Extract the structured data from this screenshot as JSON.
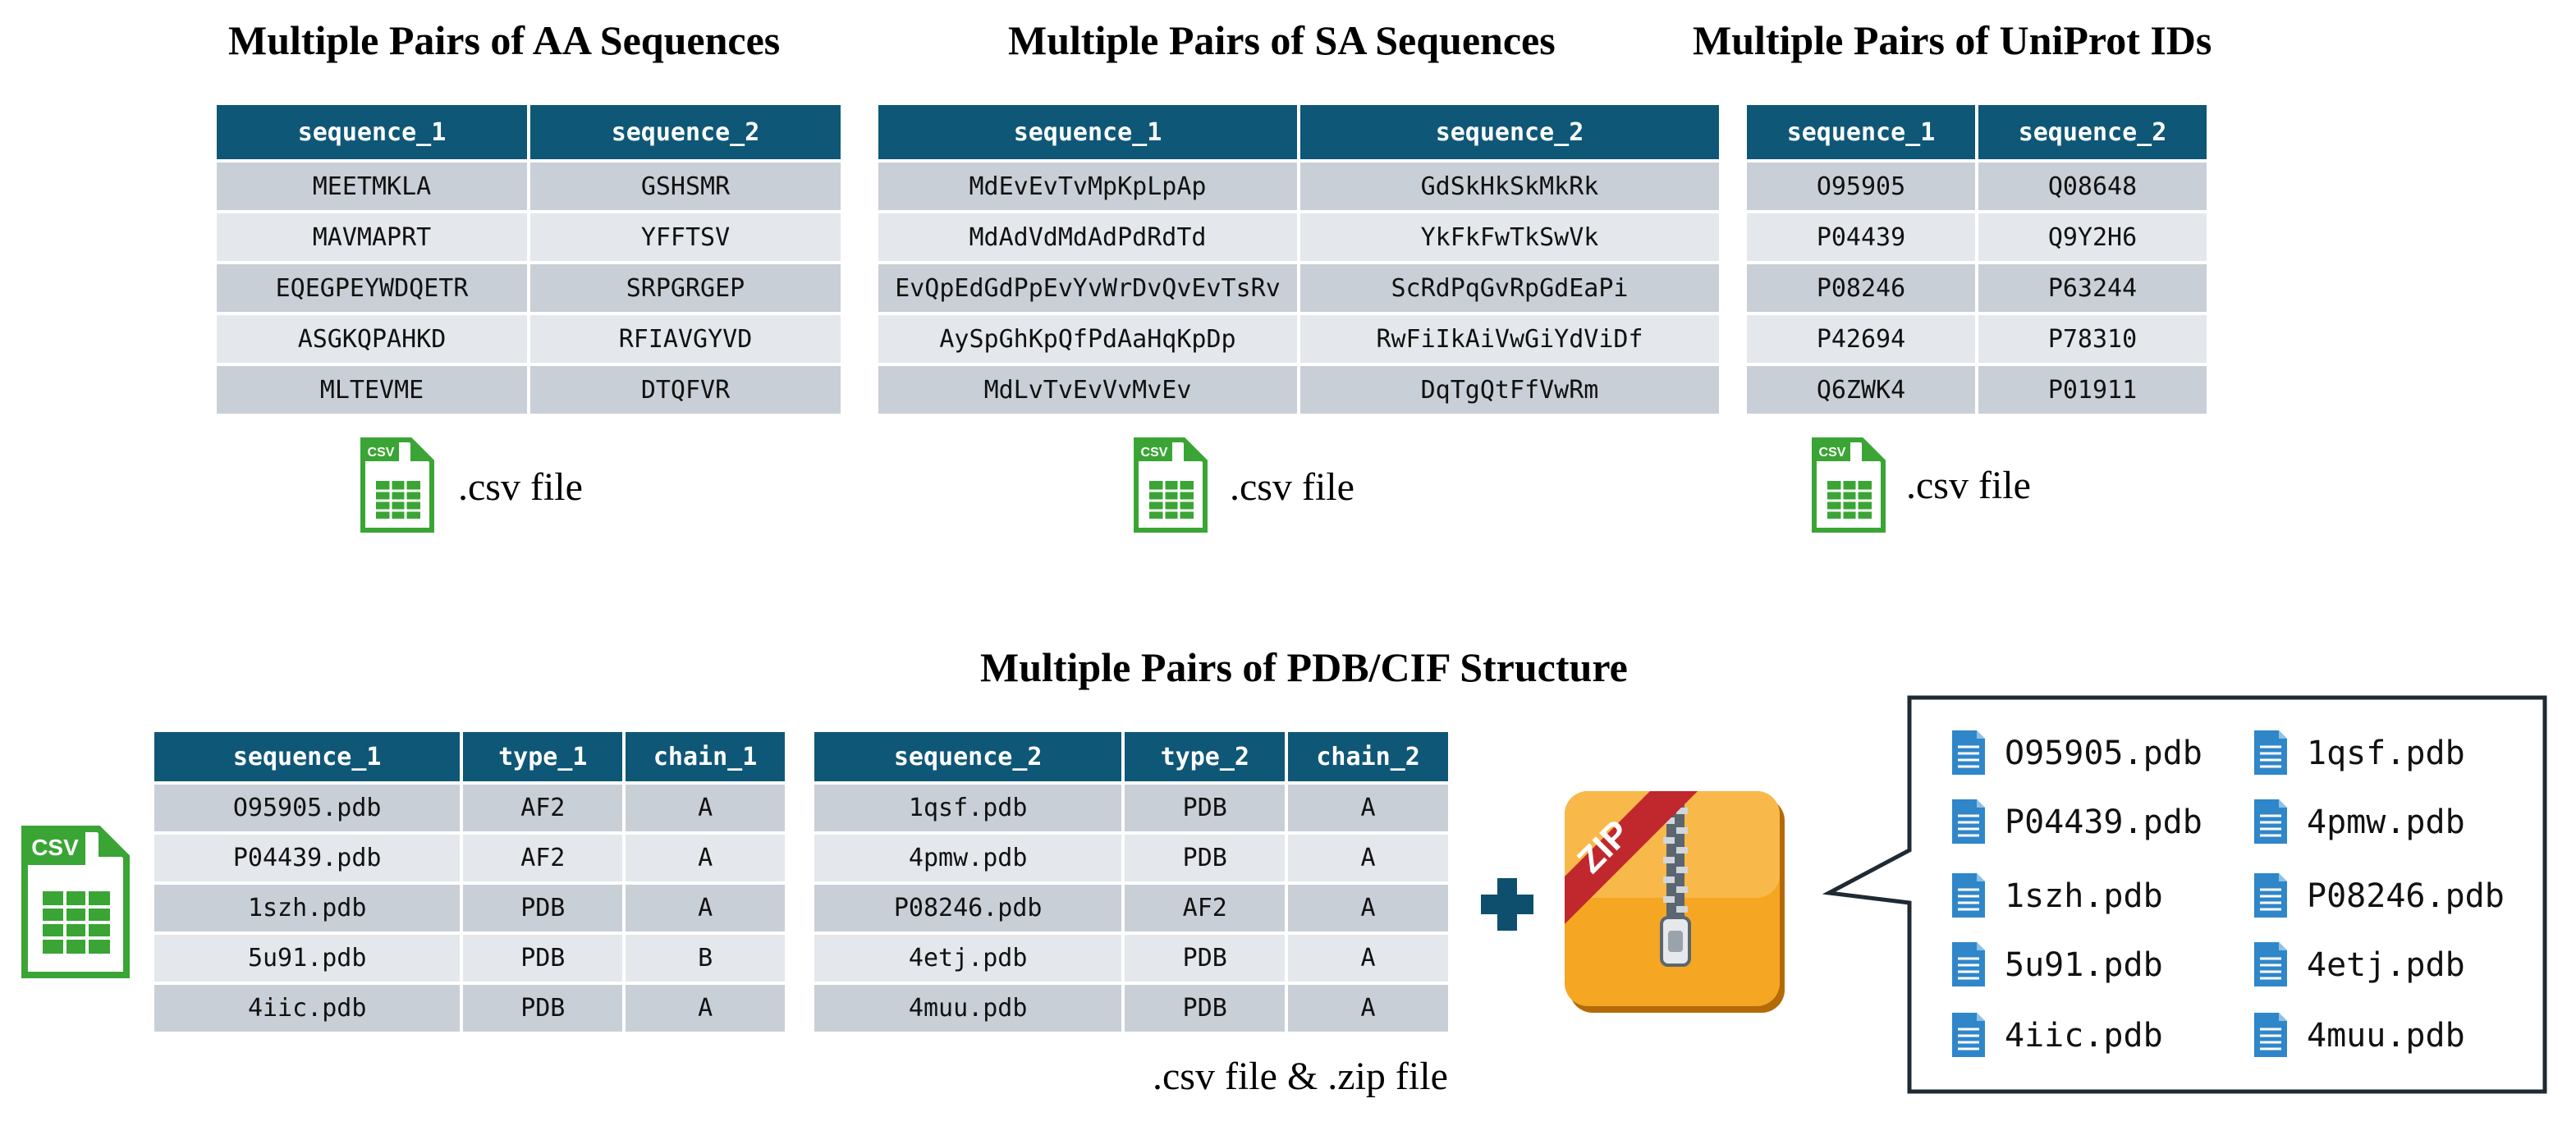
{
  "aa": {
    "title": "Multiple Pairs of  AA Sequences",
    "headers": [
      "sequence_1",
      "sequence_2"
    ],
    "rows": [
      [
        "MEETMKLA",
        "GSHSMR"
      ],
      [
        "MAVMAPRT",
        "YFFTSV"
      ],
      [
        "EQEGPEYWDQETR",
        "SRPGRGEP"
      ],
      [
        "ASGKQPAHKD",
        "RFIAVGYVD"
      ],
      [
        "MLTEVME",
        "DTQFVR"
      ]
    ],
    "file_label": ".csv file"
  },
  "sa": {
    "title": "Multiple Pairs of  SA Sequences",
    "headers": [
      "sequence_1",
      "sequence_2"
    ],
    "rows": [
      [
        "MdEvEvTvMpKpLpAp",
        "GdSkHkSkMkRk"
      ],
      [
        "MdAdVdMdAdPdRdTd",
        "YkFkFwTkSwVk"
      ],
      [
        "EvQpEdGdPpEvYvWrDvQvEvTsRv",
        "ScRdPqGvRpGdEaPi"
      ],
      [
        "AySpGhKpQfPdAaHqKpDp",
        "RwFiIkAiVwGiYdViDf"
      ],
      [
        "MdLvTvEvVvMvEv",
        "DqTgQtFfVwRm"
      ]
    ],
    "file_label": ".csv file"
  },
  "uniprot": {
    "title": "Multiple Pairs of  UniProt IDs",
    "headers": [
      "sequence_1",
      "sequence_2"
    ],
    "rows": [
      [
        "O95905",
        "Q08648"
      ],
      [
        "P04439",
        "Q9Y2H6"
      ],
      [
        "P08246",
        "P63244"
      ],
      [
        "P42694",
        "P78310"
      ],
      [
        "Q6ZWK4",
        "P01911"
      ]
    ],
    "file_label": ".csv file"
  },
  "pdb": {
    "title": "Multiple Pairs of PDB/CIF Structure",
    "left_headers": [
      "sequence_1",
      "type_1",
      "chain_1"
    ],
    "left_rows": [
      [
        "O95905.pdb",
        "AF2",
        "A"
      ],
      [
        "P04439.pdb",
        "AF2",
        "A"
      ],
      [
        "1szh.pdb",
        "PDB",
        "A"
      ],
      [
        "5u91.pdb",
        "PDB",
        "B"
      ],
      [
        "4iic.pdb",
        "PDB",
        "A"
      ]
    ],
    "right_headers": [
      "sequence_2",
      "type_2",
      "chain_2"
    ],
    "right_rows": [
      [
        "1qsf.pdb",
        "PDB",
        "A"
      ],
      [
        "4pmw.pdb",
        "PDB",
        "A"
      ],
      [
        "P08246.pdb",
        "AF2",
        "A"
      ],
      [
        "4etj.pdb",
        "PDB",
        "A"
      ],
      [
        "4muu.pdb",
        "PDB",
        "A"
      ]
    ],
    "file_label": ".csv file & .zip file",
    "csv_icon_text": "CSV",
    "small_csv_icon_text": "CSV",
    "zip_text": "ZIP",
    "zip_contents": [
      [
        "O95905.pdb",
        "1qsf.pdb"
      ],
      [
        "P04439.pdb",
        "4pmw.pdb"
      ],
      [
        "1szh.pdb",
        "P08246.pdb"
      ],
      [
        "5u91.pdb",
        "4etj.pdb"
      ],
      [
        "4iic.pdb",
        "4muu.pdb"
      ]
    ]
  },
  "colors": {
    "header": "#0f5777",
    "row_odd": "#c9cfd6",
    "row_even": "#e4e8ec",
    "csv_green": "#3aa535",
    "zip_orange": "#f5a623",
    "zip_red": "#c0282d",
    "doc_blue": "#2f86c9",
    "plus": "#0f4f6e"
  },
  "icons": [
    "csv-file-icon",
    "zip-archive-icon",
    "plus-icon",
    "pdb-file-icon",
    "speech-callout"
  ]
}
